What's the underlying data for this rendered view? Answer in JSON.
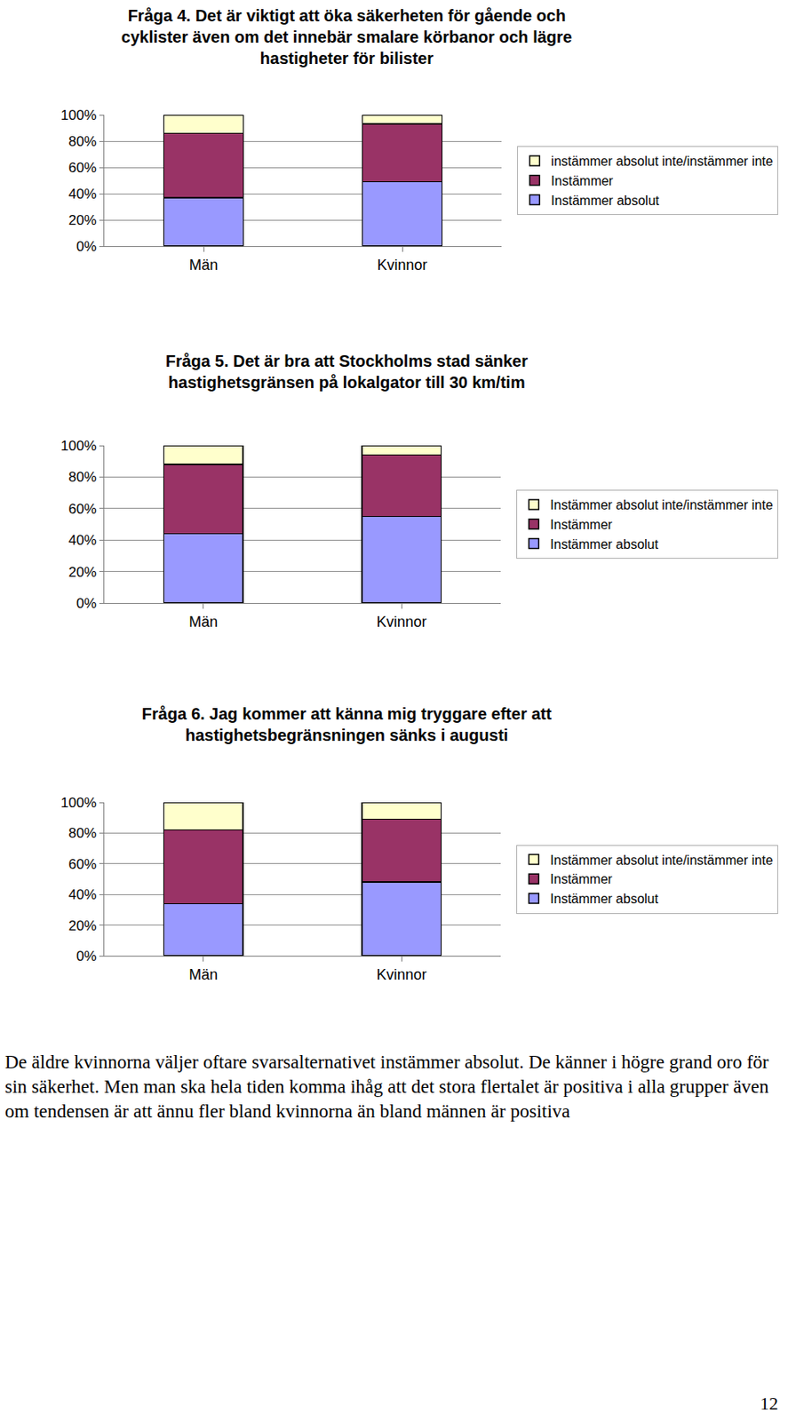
{
  "chart_data": [
    {
      "type": "bar",
      "title": [
        "Fråga 4. Det är viktigt att öka säkerheten för gående och",
        "cyklister även om det innebär smalare körbanor och lägre",
        "hastigheter för bilister"
      ],
      "categories": [
        "Män",
        "Kvinnor"
      ],
      "series": [
        {
          "name": "Instämmer absolut",
          "color": "#9999ff",
          "values": [
            37,
            49
          ]
        },
        {
          "name": "Instämmer",
          "color": "#993366",
          "values": [
            49,
            44
          ]
        },
        {
          "name": "instämmer absolut inte/instämmer inte",
          "color": "#ffffcc",
          "values": [
            14,
            7
          ]
        }
      ],
      "ylim": [
        0,
        100
      ],
      "yticks": [
        {
          "value": 0,
          "label": "0%"
        },
        {
          "value": 20,
          "label": "20%"
        },
        {
          "value": 40,
          "label": "40%"
        },
        {
          "value": 60,
          "label": "60%"
        },
        {
          "value": 80,
          "label": "80%"
        },
        {
          "value": 100,
          "label": "100%"
        }
      ],
      "stacked": true,
      "grid": true,
      "legend": "right"
    },
    {
      "type": "bar",
      "title": [
        "Fråga 5. Det är bra att Stockholms stad sänker",
        "hastighetsgränsen på lokalgator till 30 km/tim"
      ],
      "categories": [
        "Män",
        "Kvinnor"
      ],
      "series": [
        {
          "name": "Instämmer absolut",
          "color": "#9999ff",
          "values": [
            44,
            55
          ]
        },
        {
          "name": "Instämmer",
          "color": "#993366",
          "values": [
            44,
            39
          ]
        },
        {
          "name": "Instämmer absolut inte/instämmer inte",
          "color": "#ffffcc",
          "values": [
            12,
            6
          ]
        }
      ],
      "ylim": [
        0,
        100
      ],
      "yticks": [
        {
          "value": 0,
          "label": "0%"
        },
        {
          "value": 20,
          "label": "20%"
        },
        {
          "value": 40,
          "label": "40%"
        },
        {
          "value": 60,
          "label": "60%"
        },
        {
          "value": 80,
          "label": "80%"
        },
        {
          "value": 100,
          "label": "100%"
        }
      ],
      "stacked": true,
      "grid": true,
      "legend": "right"
    },
    {
      "type": "bar",
      "title": [
        "Fråga 6. Jag kommer att känna mig tryggare efter att",
        "hastighetsbegränsningen sänks i augusti"
      ],
      "categories": [
        "Män",
        "Kvinnor"
      ],
      "series": [
        {
          "name": "Instämmer absolut",
          "color": "#9999ff",
          "values": [
            34,
            48
          ]
        },
        {
          "name": "Instämmer",
          "color": "#993366",
          "values": [
            48,
            41
          ]
        },
        {
          "name": "Instämmer absolut inte/instämmer inte",
          "color": "#ffffcc",
          "values": [
            18,
            11
          ]
        }
      ],
      "ylim": [
        0,
        100
      ],
      "yticks": [
        {
          "value": 0,
          "label": "0%"
        },
        {
          "value": 20,
          "label": "20%"
        },
        {
          "value": 40,
          "label": "40%"
        },
        {
          "value": 60,
          "label": "60%"
        },
        {
          "value": 80,
          "label": "80%"
        },
        {
          "value": 100,
          "label": "100%"
        }
      ],
      "stacked": true,
      "grid": true,
      "legend": "right"
    }
  ],
  "paragraph": "De äldre kvinnorna väljer oftare svarsalternativet instämmer absolut. De känner i högre grand oro för sin säkerhet. Men man ska hela tiden komma ihåg att det stora flertalet är positiva i alla grupper även om tendensen är att ännu fler bland kvinnorna än bland männen är positiva",
  "page_number": "12"
}
